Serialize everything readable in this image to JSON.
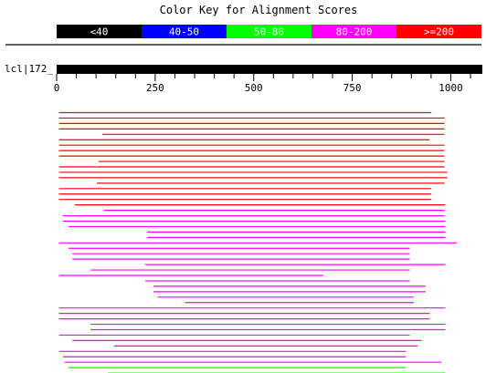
{
  "header": {
    "title": "Color Key for Alignment Scores"
  },
  "color_key": [
    {
      "label": "<40",
      "color": "#000000",
      "text_color": "#ffffff"
    },
    {
      "label": "40-50",
      "color": "#0000ff",
      "text_color": "#ffffff"
    },
    {
      "label": "50-80",
      "color": "#00ff00",
      "text_color": "#ffffff"
    },
    {
      "label": "80-200",
      "color": "#ff00ff",
      "text_color": "#ffffff"
    },
    {
      "label": ">=200",
      "color": "#ff0000",
      "text_color": "#ffffff"
    }
  ],
  "query": {
    "label": "lcl|172_",
    "length": 1080,
    "color": "#000000"
  },
  "axis": {
    "max": 1080,
    "ticks": [
      0,
      250,
      500,
      750,
      1000
    ],
    "tick_labels": [
      "0",
      "250",
      "500",
      "750",
      "1000"
    ]
  },
  "chart_data": {
    "type": "alignment-graphic",
    "x_range": [
      0,
      1080
    ],
    "hits": [
      {
        "start": 6,
        "end": 950,
        "category": ">=200"
      },
      {
        "start": 6,
        "end": 984,
        "category": ">=200"
      },
      {
        "start": 6,
        "end": 984,
        "category": ">=200"
      },
      {
        "start": 6,
        "end": 984,
        "category": ">=200"
      },
      {
        "start": 116,
        "end": 984,
        "category": ">=200"
      },
      {
        "start": 6,
        "end": 946,
        "category": ">=200"
      },
      {
        "start": 6,
        "end": 984,
        "category": ">=200"
      },
      {
        "start": 6,
        "end": 984,
        "category": ">=200"
      },
      {
        "start": 6,
        "end": 984,
        "category": ">=200"
      },
      {
        "start": 106,
        "end": 984,
        "category": ">=200"
      },
      {
        "start": 6,
        "end": 984,
        "category": ">=200"
      },
      {
        "start": 6,
        "end": 991,
        "category": ">=200"
      },
      {
        "start": 6,
        "end": 991,
        "category": ">=200"
      },
      {
        "start": 102,
        "end": 984,
        "category": ">=200"
      },
      {
        "start": 6,
        "end": 950,
        "category": ">=200"
      },
      {
        "start": 6,
        "end": 950,
        "category": ">=200"
      },
      {
        "start": 6,
        "end": 950,
        "category": ">=200"
      },
      {
        "start": 46,
        "end": 986,
        "category": ">=200"
      },
      {
        "start": 120,
        "end": 984,
        "category": "80-200"
      },
      {
        "start": 16,
        "end": 984,
        "category": "80-200"
      },
      {
        "start": 16,
        "end": 986,
        "category": "80-200"
      },
      {
        "start": 30,
        "end": 986,
        "category": "80-200"
      },
      {
        "start": 230,
        "end": 986,
        "category": "80-200"
      },
      {
        "start": 230,
        "end": 986,
        "category": "80-200"
      },
      {
        "start": 6,
        "end": 1015,
        "category": "80-200"
      },
      {
        "start": 30,
        "end": 896,
        "category": "80-200"
      },
      {
        "start": 40,
        "end": 896,
        "category": "80-200"
      },
      {
        "start": 40,
        "end": 896,
        "category": "80-200"
      },
      {
        "start": 225,
        "end": 986,
        "category": "80-200"
      },
      {
        "start": 86,
        "end": 896,
        "category": "80-200"
      },
      {
        "start": 6,
        "end": 676,
        "category": "80-200"
      },
      {
        "start": 225,
        "end": 896,
        "category": "80-200"
      },
      {
        "start": 246,
        "end": 936,
        "category": "80-200"
      },
      {
        "start": 246,
        "end": 936,
        "category": "80-200"
      },
      {
        "start": 256,
        "end": 906,
        "category": "80-200"
      },
      {
        "start": 326,
        "end": 906,
        "category": "80-200"
      },
      {
        "start": 6,
        "end": 986,
        "category": "80-200"
      },
      {
        "start": 6,
        "end": 946,
        "category": "80-200"
      },
      {
        "start": 6,
        "end": 946,
        "category": "80-200"
      },
      {
        "start": 86,
        "end": 986,
        "category": "80-200"
      },
      {
        "start": 86,
        "end": 986,
        "category": "80-200"
      },
      {
        "start": 6,
        "end": 896,
        "category": "80-200"
      },
      {
        "start": 40,
        "end": 926,
        "category": "80-200"
      },
      {
        "start": 146,
        "end": 916,
        "category": "80-200"
      },
      {
        "start": 6,
        "end": 886,
        "category": "80-200"
      },
      {
        "start": 16,
        "end": 886,
        "category": "80-200"
      },
      {
        "start": 20,
        "end": 976,
        "category": "80-200"
      },
      {
        "start": 30,
        "end": 886,
        "category": "50-80"
      },
      {
        "start": 130,
        "end": 986,
        "category": "50-80"
      }
    ]
  }
}
